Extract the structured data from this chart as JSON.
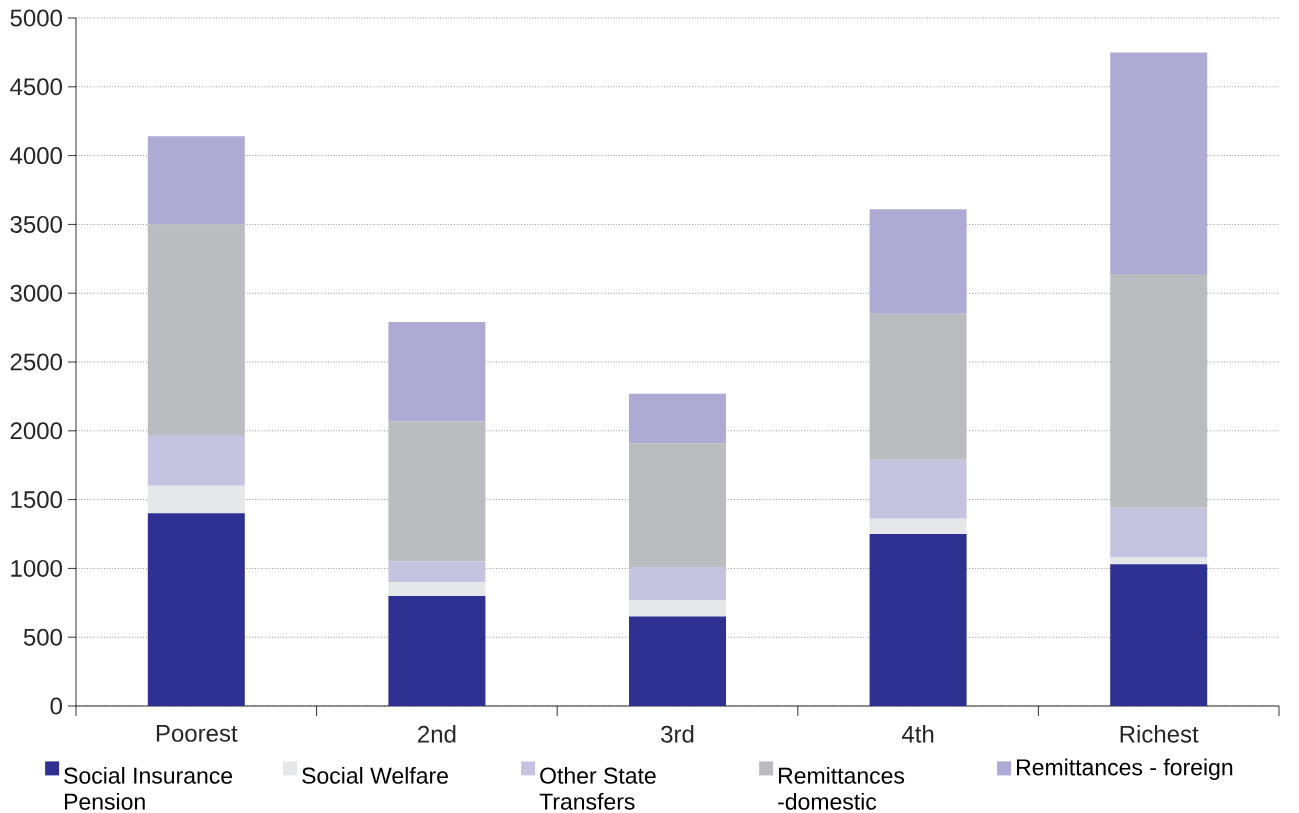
{
  "chart_data": {
    "type": "bar",
    "stacked": true,
    "categories": [
      "Poorest",
      "2nd",
      "3rd",
      "4th",
      "Richest"
    ],
    "series": [
      {
        "name": "Social Insurance Pension",
        "color": "#2e3192",
        "values": [
          1400,
          800,
          650,
          1250,
          1030
        ]
      },
      {
        "name": "Social Welfare",
        "color": "#e6e7e8",
        "values": [
          200,
          100,
          120,
          110,
          50
        ]
      },
      {
        "name": "Other State Transfers",
        "color": "#c6c3e1",
        "values": [
          370,
          150,
          240,
          430,
          360
        ]
      },
      {
        "name": "Remittances -domestic",
        "color": "#bbbcc0",
        "values": [
          1530,
          1020,
          900,
          1060,
          1700
        ]
      },
      {
        "name": "Remittances - foreign",
        "color": "#afaad3",
        "values": [
          640,
          720,
          360,
          760,
          1610
        ]
      }
    ],
    "ylim": [
      0,
      5000
    ],
    "yticks": [
      0,
      500,
      1000,
      1500,
      2000,
      2500,
      3000,
      3500,
      4000,
      4500,
      5000
    ],
    "grid": "y",
    "legend": "bottom"
  }
}
